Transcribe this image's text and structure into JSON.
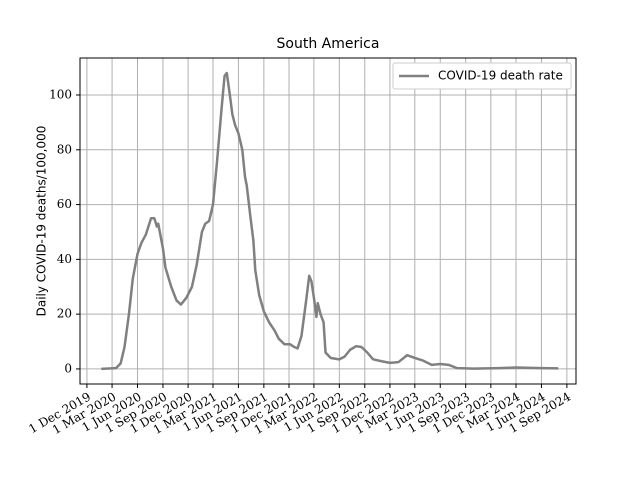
{
  "chart_data": {
    "type": "line",
    "title": "South America",
    "ylabel": "Daily COVID-19 deaths/100,000",
    "x": [
      "2020-01-22",
      "2020-03-15",
      "2020-04-01",
      "2020-04-15",
      "2020-05-01",
      "2020-05-15",
      "2020-06-01",
      "2020-06-15",
      "2020-07-01",
      "2020-07-20",
      "2020-08-01",
      "2020-08-10",
      "2020-08-15",
      "2020-09-01",
      "2020-09-10",
      "2020-10-01",
      "2020-10-20",
      "2020-11-05",
      "2020-11-25",
      "2020-12-15",
      "2021-01-01",
      "2021-01-20",
      "2021-02-01",
      "2021-02-15",
      "2021-03-01",
      "2021-03-15",
      "2021-04-01",
      "2021-04-12",
      "2021-04-20",
      "2021-05-01",
      "2021-05-10",
      "2021-05-20",
      "2021-06-01",
      "2021-06-15",
      "2021-06-25",
      "2021-07-01",
      "2021-07-15",
      "2021-07-25",
      "2021-08-01",
      "2021-08-15",
      "2021-09-01",
      "2021-09-20",
      "2021-10-10",
      "2021-10-25",
      "2021-11-15",
      "2021-12-05",
      "2021-12-20",
      "2022-01-01",
      "2022-01-15",
      "2022-02-01",
      "2022-02-12",
      "2022-02-20",
      "2022-03-01",
      "2022-03-10",
      "2022-03-15",
      "2022-03-25",
      "2022-04-05",
      "2022-04-12",
      "2022-05-01",
      "2022-06-01",
      "2022-06-20",
      "2022-07-10",
      "2022-08-01",
      "2022-08-20",
      "2022-09-10",
      "2022-10-01",
      "2022-11-01",
      "2022-12-01",
      "2023-01-01",
      "2023-02-01",
      "2023-03-01",
      "2023-04-01",
      "2023-05-01",
      "2023-06-01",
      "2023-07-01",
      "2023-08-01",
      "2023-10-01",
      "2024-01-01",
      "2024-03-01",
      "2024-06-01",
      "2024-08-01"
    ],
    "series": [
      {
        "name": "COVID-19 death rate",
        "color": "#808080",
        "values": [
          0,
          0.3,
          2,
          8,
          20,
          33,
          42,
          46,
          49,
          55,
          55,
          52,
          53,
          44,
          37,
          30,
          25,
          23.5,
          26,
          30,
          38,
          50,
          53,
          54,
          60,
          75,
          95,
          107,
          108,
          100,
          93,
          89,
          86,
          80,
          70,
          67,
          55,
          47,
          36,
          27,
          21,
          17,
          14,
          11,
          9,
          9,
          8,
          7.5,
          12,
          25,
          34,
          32,
          26,
          19,
          24,
          20,
          17,
          6,
          4,
          3.5,
          4.5,
          7,
          8.3,
          8,
          6,
          3.5,
          2.8,
          2.2,
          2.5,
          5,
          4,
          3,
          1.5,
          1.8,
          1.5,
          0.3,
          0.1,
          0.3,
          0.5,
          0.3,
          0.2
        ]
      }
    ],
    "xlim": [
      "2019-11-06",
      "2024-10-04"
    ],
    "xticks": [
      {
        "value": "2019-12-01",
        "label": "1 Dec 2019"
      },
      {
        "value": "2020-03-01",
        "label": "1 Mar 2020"
      },
      {
        "value": "2020-06-01",
        "label": "1 Jun 2020"
      },
      {
        "value": "2020-09-01",
        "label": "1 Sep 2020"
      },
      {
        "value": "2020-12-01",
        "label": "1 Dec 2020"
      },
      {
        "value": "2021-03-01",
        "label": "1 Mar 2021"
      },
      {
        "value": "2021-06-01",
        "label": "1 Jun 2021"
      },
      {
        "value": "2021-09-01",
        "label": "1 Sep 2021"
      },
      {
        "value": "2021-12-01",
        "label": "1 Dec 2021"
      },
      {
        "value": "2022-03-01",
        "label": "1 Mar 2022"
      },
      {
        "value": "2022-06-01",
        "label": "1 Jun 2022"
      },
      {
        "value": "2022-09-01",
        "label": "1 Sep 2022"
      },
      {
        "value": "2022-12-01",
        "label": "1 Dec 2022"
      },
      {
        "value": "2023-03-01",
        "label": "1 Mar 2023"
      },
      {
        "value": "2023-06-01",
        "label": "1 Jun 2023"
      },
      {
        "value": "2023-09-01",
        "label": "1 Sep 2023"
      },
      {
        "value": "2023-12-01",
        "label": "1 Dec 2023"
      },
      {
        "value": "2024-03-01",
        "label": "1 Mar 2024"
      },
      {
        "value": "2024-06-01",
        "label": "1 Jun 2024"
      },
      {
        "value": "2024-09-01",
        "label": "1 Sep 2024"
      }
    ],
    "ylim": [
      -5.5,
      113.5
    ],
    "yticks": [
      0,
      20,
      40,
      60,
      80,
      100
    ],
    "grid": true,
    "legend": "upper right"
  }
}
